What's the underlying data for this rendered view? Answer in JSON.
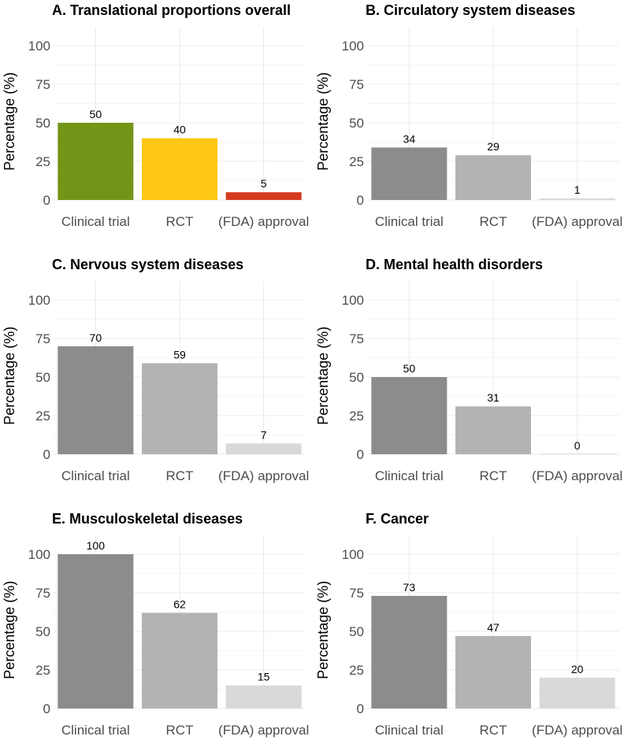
{
  "colors": {
    "grid": "#ebebeb",
    "grid_minor": "#f3f3f3",
    "tick_text": "#4d4d4d"
  },
  "chart_data": [
    {
      "type": "bar",
      "title": "A. Translational proportions overall",
      "categories": [
        "Clinical trial",
        "RCT",
        "(FDA) approval"
      ],
      "values": [
        50,
        40,
        5
      ],
      "bar_colors": [
        "#739517",
        "#fdc714",
        "#d43a1f"
      ],
      "data_labels": [
        "50",
        "40",
        "5"
      ],
      "xlabel": "",
      "ylabel": "Percentage (%)",
      "ylim": [
        0,
        112
      ],
      "yticks": [
        0,
        25,
        50,
        75,
        100
      ],
      "ytick_labels": [
        "0",
        "25",
        "50",
        "75",
        "100"
      ]
    },
    {
      "type": "bar",
      "title": "B. Circulatory system diseases",
      "categories": [
        "Clinical trial",
        "RCT",
        "(FDA) approval"
      ],
      "values": [
        34,
        29,
        1
      ],
      "bar_colors": [
        "#8c8c8c",
        "#b3b3b3",
        "#d9d9d9"
      ],
      "data_labels": [
        "34",
        "29",
        "1"
      ],
      "xlabel": "",
      "ylabel": "Percentage (%)",
      "ylim": [
        0,
        112
      ],
      "yticks": [
        0,
        25,
        50,
        75,
        100
      ],
      "ytick_labels": [
        "0",
        "25",
        "50",
        "75",
        "100"
      ]
    },
    {
      "type": "bar",
      "title": "C. Nervous system diseases",
      "categories": [
        "Clinical trial",
        "RCT",
        "(FDA) approval"
      ],
      "values": [
        70,
        59,
        7
      ],
      "bar_colors": [
        "#8c8c8c",
        "#b3b3b3",
        "#d9d9d9"
      ],
      "data_labels": [
        "70",
        "59",
        "7"
      ],
      "xlabel": "",
      "ylabel": "Percentage (%)",
      "ylim": [
        0,
        112
      ],
      "yticks": [
        0,
        25,
        50,
        75,
        100
      ],
      "ytick_labels": [
        "0",
        "25",
        "50",
        "75",
        "100"
      ]
    },
    {
      "type": "bar",
      "title": "D. Mental health disorders",
      "categories": [
        "Clinical trial",
        "RCT",
        "(FDA) approval"
      ],
      "values": [
        50,
        31,
        0
      ],
      "bar_colors": [
        "#8c8c8c",
        "#b3b3b3",
        "#d9d9d9"
      ],
      "data_labels": [
        "50",
        "31",
        "0"
      ],
      "xlabel": "",
      "ylabel": "Percentage (%)",
      "ylim": [
        0,
        112
      ],
      "yticks": [
        0,
        25,
        50,
        75,
        100
      ],
      "ytick_labels": [
        "0",
        "25",
        "50",
        "75",
        "100"
      ]
    },
    {
      "type": "bar",
      "title": "E. Musculoskeletal diseases",
      "categories": [
        "Clinical trial",
        "RCT",
        "(FDA) approval"
      ],
      "values": [
        100,
        62,
        15
      ],
      "bar_colors": [
        "#8c8c8c",
        "#b3b3b3",
        "#d9d9d9"
      ],
      "data_labels": [
        "100",
        "62",
        "15"
      ],
      "xlabel": "",
      "ylabel": "Percentage (%)",
      "ylim": [
        0,
        112
      ],
      "yticks": [
        0,
        25,
        50,
        75,
        100
      ],
      "ytick_labels": [
        "0",
        "25",
        "50",
        "75",
        "100"
      ]
    },
    {
      "type": "bar",
      "title": "F. Cancer",
      "categories": [
        "Clinical trial",
        "RCT",
        "(FDA) approval"
      ],
      "values": [
        73,
        47,
        20
      ],
      "bar_colors": [
        "#8c8c8c",
        "#b3b3b3",
        "#d9d9d9"
      ],
      "data_labels": [
        "73",
        "47",
        "20"
      ],
      "xlabel": "",
      "ylabel": "Percentage (%)",
      "ylim": [
        0,
        112
      ],
      "yticks": [
        0,
        25,
        50,
        75,
        100
      ],
      "ytick_labels": [
        "0",
        "25",
        "50",
        "75",
        "100"
      ]
    }
  ]
}
